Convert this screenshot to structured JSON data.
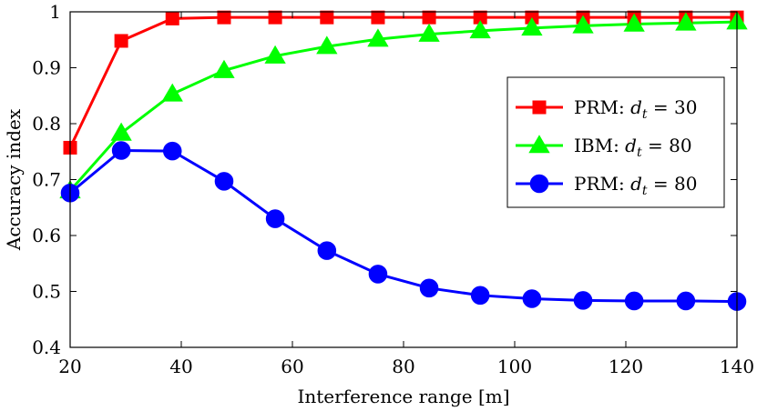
{
  "chart_data": {
    "type": "line",
    "xlabel": "Interference range [m]",
    "ylabel": "Accuracy index",
    "xlim": [
      20,
      140
    ],
    "ylim": [
      0.4,
      1.0
    ],
    "xticks": [
      20,
      40,
      60,
      80,
      100,
      120,
      140
    ],
    "yticks": [
      0.4,
      0.5,
      0.6,
      0.7,
      0.8,
      0.9,
      1.0
    ],
    "ytick_labels": [
      "0.4",
      "0.5",
      "0.6",
      "0.7",
      "0.8",
      "0.9",
      "1"
    ],
    "grid": false,
    "legend_position": "right",
    "series": [
      {
        "name": "PRM:",
        "legend_math": "d",
        "legend_sub": "t",
        "legend_rest": " = 30",
        "color": "#ff0000",
        "marker": "square",
        "x": [
          20,
          29.2,
          38.4,
          47.7,
          56.9,
          66.2,
          75.4,
          84.6,
          93.8,
          103.1,
          112.3,
          121.5,
          130.8,
          140
        ],
        "y": [
          0.757,
          0.948,
          0.988,
          0.99,
          0.99,
          0.99,
          0.99,
          0.99,
          0.99,
          0.99,
          0.99,
          0.99,
          0.99,
          0.99
        ]
      },
      {
        "name": "IBM:",
        "legend_math": "d",
        "legend_sub": "t",
        "legend_rest": " = 80",
        "color": "#00ff00",
        "marker": "triangle",
        "x": [
          20,
          29.2,
          38.4,
          47.7,
          56.9,
          66.2,
          75.4,
          84.6,
          93.8,
          103.1,
          112.3,
          121.5,
          130.8,
          140
        ],
        "y": [
          0.68,
          0.783,
          0.853,
          0.895,
          0.921,
          0.938,
          0.951,
          0.96,
          0.966,
          0.971,
          0.975,
          0.978,
          0.98,
          0.982
        ]
      },
      {
        "name": "PRM:",
        "legend_math": "d",
        "legend_sub": "t",
        "legend_rest": " = 80",
        "color": "#0000ff",
        "marker": "circle",
        "x": [
          20,
          29.2,
          38.4,
          47.7,
          56.9,
          66.2,
          75.4,
          84.6,
          93.8,
          103.1,
          112.3,
          121.5,
          130.8,
          140
        ],
        "y": [
          0.676,
          0.752,
          0.751,
          0.697,
          0.63,
          0.573,
          0.531,
          0.506,
          0.493,
          0.487,
          0.484,
          0.483,
          0.483,
          0.482
        ]
      }
    ]
  }
}
